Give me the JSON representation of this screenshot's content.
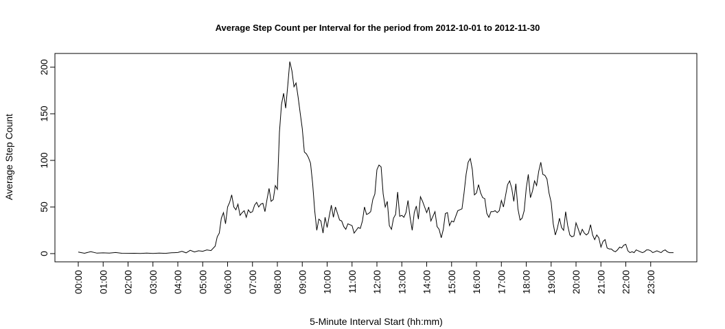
{
  "chart_data": {
    "type": "line",
    "title": "Average Step Count per Interval for the period from 2012-10-01 to 2012-11-30",
    "xlabel": "5-Minute Interval Start (hh:mm)",
    "ylabel": "Average Step Count",
    "xlim": [
      "00:00",
      "23:55"
    ],
    "ylim": [
      0,
      206
    ],
    "x_ticks": [
      "00:00",
      "01:00",
      "02:00",
      "03:00",
      "04:00",
      "05:00",
      "06:00",
      "07:00",
      "08:00",
      "09:00",
      "10:00",
      "11:00",
      "12:00",
      "13:00",
      "14:00",
      "15:00",
      "16:00",
      "17:00",
      "18:00",
      "19:00",
      "20:00",
      "21:00",
      "22:00",
      "23:00"
    ],
    "y_ticks": [
      0,
      50,
      100,
      150,
      200
    ],
    "grid": false,
    "legend": "none",
    "series": [
      {
        "points": [
          [
            "00:00",
            1.7
          ],
          [
            "00:15",
            0.4
          ],
          [
            "00:30",
            2.1
          ],
          [
            "00:45",
            0.5
          ],
          [
            "01:00",
            0.8
          ],
          [
            "01:15",
            0.6
          ],
          [
            "01:30",
            1.2
          ],
          [
            "01:45",
            0.4
          ],
          [
            "02:00",
            0.3
          ],
          [
            "02:15",
            0.4
          ],
          [
            "02:30",
            0.2
          ],
          [
            "02:45",
            0.5
          ],
          [
            "03:00",
            0.2
          ],
          [
            "03:15",
            0.6
          ],
          [
            "03:30",
            0.3
          ],
          [
            "03:45",
            0.9
          ],
          [
            "04:00",
            1.2
          ],
          [
            "04:10",
            2.5
          ],
          [
            "04:20",
            0.8
          ],
          [
            "04:30",
            3.5
          ],
          [
            "04:40",
            1.8
          ],
          [
            "04:50",
            3.0
          ],
          [
            "05:00",
            2.5
          ],
          [
            "05:10",
            4.0
          ],
          [
            "05:20",
            3.2
          ],
          [
            "05:30",
            8.0
          ],
          [
            "05:35",
            18
          ],
          [
            "05:40",
            22
          ],
          [
            "05:45",
            38
          ],
          [
            "05:50",
            44
          ],
          [
            "05:55",
            32
          ],
          [
            "06:00",
            50
          ],
          [
            "06:05",
            55
          ],
          [
            "06:10",
            63
          ],
          [
            "06:15",
            50
          ],
          [
            "06:20",
            47
          ],
          [
            "06:25",
            53
          ],
          [
            "06:30",
            41
          ],
          [
            "06:35",
            44
          ],
          [
            "06:40",
            46
          ],
          [
            "06:45",
            39
          ],
          [
            "06:50",
            47
          ],
          [
            "06:55",
            44
          ],
          [
            "07:00",
            45
          ],
          [
            "07:05",
            52
          ],
          [
            "07:10",
            55
          ],
          [
            "07:15",
            50
          ],
          [
            "07:20",
            53
          ],
          [
            "07:25",
            54
          ],
          [
            "07:30",
            45
          ],
          [
            "07:35",
            58
          ],
          [
            "07:40",
            70
          ],
          [
            "07:45",
            56
          ],
          [
            "07:50",
            58
          ],
          [
            "07:55",
            73
          ],
          [
            "08:00",
            69
          ],
          [
            "08:05",
            130
          ],
          [
            "08:10",
            160
          ],
          [
            "08:15",
            172
          ],
          [
            "08:20",
            156
          ],
          [
            "08:25",
            180
          ],
          [
            "08:30",
            206
          ],
          [
            "08:35",
            196
          ],
          [
            "08:40",
            179
          ],
          [
            "08:45",
            183
          ],
          [
            "08:50",
            168
          ],
          [
            "08:55",
            151
          ],
          [
            "09:00",
            134
          ],
          [
            "09:05",
            109
          ],
          [
            "09:10",
            107
          ],
          [
            "09:15",
            103
          ],
          [
            "09:20",
            97
          ],
          [
            "09:25",
            75
          ],
          [
            "09:30",
            46
          ],
          [
            "09:35",
            25
          ],
          [
            "09:40",
            37
          ],
          [
            "09:45",
            35
          ],
          [
            "09:50",
            22
          ],
          [
            "09:55",
            39
          ],
          [
            "10:00",
            28
          ],
          [
            "10:05",
            40
          ],
          [
            "10:10",
            52
          ],
          [
            "10:15",
            39
          ],
          [
            "10:20",
            50
          ],
          [
            "10:25",
            43
          ],
          [
            "10:30",
            36
          ],
          [
            "10:35",
            35
          ],
          [
            "10:40",
            29
          ],
          [
            "10:45",
            26
          ],
          [
            "10:50",
            32
          ],
          [
            "10:55",
            31
          ],
          [
            "11:00",
            30
          ],
          [
            "11:05",
            22
          ],
          [
            "11:10",
            25
          ],
          [
            "11:15",
            28
          ],
          [
            "11:20",
            27
          ],
          [
            "11:25",
            35
          ],
          [
            "11:30",
            50
          ],
          [
            "11:35",
            42
          ],
          [
            "11:40",
            43
          ],
          [
            "11:45",
            45
          ],
          [
            "11:50",
            58
          ],
          [
            "11:55",
            64
          ],
          [
            "12:00",
            90
          ],
          [
            "12:05",
            95
          ],
          [
            "12:10",
            93
          ],
          [
            "12:15",
            64
          ],
          [
            "12:20",
            50
          ],
          [
            "12:25",
            56
          ],
          [
            "12:30",
            30
          ],
          [
            "12:35",
            26
          ],
          [
            "12:40",
            38
          ],
          [
            "12:45",
            42
          ],
          [
            "12:50",
            66
          ],
          [
            "12:55",
            40
          ],
          [
            "13:00",
            41
          ],
          [
            "13:05",
            39
          ],
          [
            "13:10",
            44
          ],
          [
            "13:15",
            57
          ],
          [
            "13:20",
            39
          ],
          [
            "13:25",
            25
          ],
          [
            "13:30",
            44
          ],
          [
            "13:35",
            51
          ],
          [
            "13:40",
            37
          ],
          [
            "13:45",
            61
          ],
          [
            "13:50",
            56
          ],
          [
            "13:55",
            50
          ],
          [
            "14:00",
            44
          ],
          [
            "14:05",
            50
          ],
          [
            "14:10",
            35
          ],
          [
            "14:15",
            40
          ],
          [
            "14:20",
            45
          ],
          [
            "14:25",
            29
          ],
          [
            "14:30",
            26
          ],
          [
            "14:35",
            17
          ],
          [
            "14:40",
            26
          ],
          [
            "14:45",
            43
          ],
          [
            "14:50",
            44
          ],
          [
            "14:55",
            30
          ],
          [
            "15:00",
            35
          ],
          [
            "15:05",
            34
          ],
          [
            "15:10",
            40
          ],
          [
            "15:15",
            46
          ],
          [
            "15:20",
            47
          ],
          [
            "15:25",
            48
          ],
          [
            "15:30",
            65
          ],
          [
            "15:35",
            85
          ],
          [
            "15:40",
            98
          ],
          [
            "15:45",
            102
          ],
          [
            "15:50",
            90
          ],
          [
            "15:55",
            63
          ],
          [
            "16:00",
            65
          ],
          [
            "16:05",
            74
          ],
          [
            "16:10",
            65
          ],
          [
            "16:15",
            60
          ],
          [
            "16:20",
            59
          ],
          [
            "16:25",
            43
          ],
          [
            "16:30",
            39
          ],
          [
            "16:35",
            45
          ],
          [
            "16:40",
            45
          ],
          [
            "16:45",
            46
          ],
          [
            "16:50",
            44
          ],
          [
            "16:55",
            46
          ],
          [
            "17:00",
            57
          ],
          [
            "17:05",
            50
          ],
          [
            "17:10",
            62
          ],
          [
            "17:15",
            74
          ],
          [
            "17:20",
            78
          ],
          [
            "17:25",
            70
          ],
          [
            "17:30",
            56
          ],
          [
            "17:35",
            75
          ],
          [
            "17:40",
            48
          ],
          [
            "17:45",
            36
          ],
          [
            "17:50",
            38
          ],
          [
            "17:55",
            46
          ],
          [
            "18:00",
            70
          ],
          [
            "18:05",
            85
          ],
          [
            "18:10",
            60
          ],
          [
            "18:15",
            67
          ],
          [
            "18:20",
            78
          ],
          [
            "18:25",
            73
          ],
          [
            "18:30",
            88
          ],
          [
            "18:35",
            98
          ],
          [
            "18:40",
            85
          ],
          [
            "18:45",
            84
          ],
          [
            "18:50",
            80
          ],
          [
            "18:55",
            65
          ],
          [
            "19:00",
            55
          ],
          [
            "19:05",
            32
          ],
          [
            "19:10",
            20
          ],
          [
            "19:15",
            27
          ],
          [
            "19:20",
            38
          ],
          [
            "19:25",
            28
          ],
          [
            "19:30",
            25
          ],
          [
            "19:35",
            45
          ],
          [
            "19:40",
            30
          ],
          [
            "19:45",
            20
          ],
          [
            "19:50",
            18
          ],
          [
            "19:55",
            19
          ],
          [
            "20:00",
            33
          ],
          [
            "20:05",
            27
          ],
          [
            "20:10",
            20
          ],
          [
            "20:15",
            26
          ],
          [
            "20:20",
            22
          ],
          [
            "20:25",
            20
          ],
          [
            "20:30",
            22
          ],
          [
            "20:35",
            31
          ],
          [
            "20:40",
            20
          ],
          [
            "20:45",
            15
          ],
          [
            "20:50",
            20
          ],
          [
            "20:55",
            17
          ],
          [
            "21:00",
            7
          ],
          [
            "21:05",
            13
          ],
          [
            "21:10",
            15
          ],
          [
            "21:15",
            6
          ],
          [
            "21:20",
            5
          ],
          [
            "21:25",
            5
          ],
          [
            "21:30",
            3
          ],
          [
            "21:35",
            2
          ],
          [
            "21:40",
            4
          ],
          [
            "21:45",
            7
          ],
          [
            "21:50",
            6
          ],
          [
            "21:55",
            9
          ],
          [
            "22:00",
            10
          ],
          [
            "22:05",
            3
          ],
          [
            "22:10",
            1
          ],
          [
            "22:15",
            2
          ],
          [
            "22:20",
            1
          ],
          [
            "22:25",
            4
          ],
          [
            "22:30",
            3
          ],
          [
            "22:35",
            2
          ],
          [
            "22:40",
            1
          ],
          [
            "22:45",
            2
          ],
          [
            "22:50",
            4
          ],
          [
            "22:55",
            4
          ],
          [
            "23:00",
            3
          ],
          [
            "23:05",
            1
          ],
          [
            "23:10",
            2
          ],
          [
            "23:15",
            3
          ],
          [
            "23:20",
            2
          ],
          [
            "23:25",
            1
          ],
          [
            "23:30",
            3
          ],
          [
            "23:35",
            4
          ],
          [
            "23:40",
            2
          ],
          [
            "23:45",
            1
          ],
          [
            "23:55",
            1
          ]
        ]
      }
    ]
  }
}
